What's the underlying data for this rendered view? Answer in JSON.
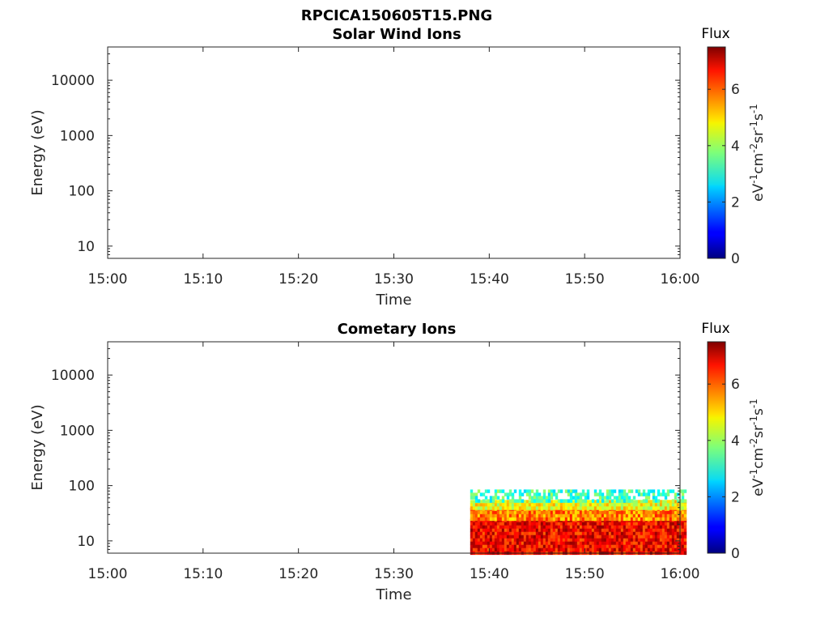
{
  "figure": {
    "title": "RPCICA150605T15.PNG"
  },
  "chart_data": [
    {
      "type": "heatmap",
      "title": "Solar Wind Ions",
      "xlabel": "Time",
      "ylabel": "Energy (eV)",
      "x_ticks": [
        "15:00",
        "15:10",
        "15:20",
        "15:30",
        "15:40",
        "15:50",
        "16:00"
      ],
      "xlim": [
        "15:00",
        "16:00"
      ],
      "y_scale": "log",
      "y_ticks": [
        10,
        100,
        1000,
        10000
      ],
      "y_tick_labels": [
        "10",
        "100",
        "1000",
        "10000"
      ],
      "ylim": [
        6,
        40000
      ],
      "colorbar": {
        "title": "Flux",
        "label": "eV-1cm-2sr-1s-1",
        "ticks": [
          0,
          2,
          4,
          6
        ],
        "tick_labels": [
          "0",
          "2",
          "4",
          "6"
        ],
        "range": [
          0,
          7.5
        ],
        "colormap": "jet"
      },
      "regions": []
    },
    {
      "type": "heatmap",
      "title": "Cometary Ions",
      "xlabel": "Time",
      "ylabel": "Energy (eV)",
      "x_ticks": [
        "15:00",
        "15:10",
        "15:20",
        "15:30",
        "15:40",
        "15:50",
        "16:00"
      ],
      "xlim": [
        "15:00",
        "16:00"
      ],
      "y_scale": "log",
      "y_ticks": [
        10,
        100,
        1000,
        10000
      ],
      "y_tick_labels": [
        "10",
        "100",
        "1000",
        "10000"
      ],
      "ylim": [
        6,
        40000
      ],
      "colorbar": {
        "title": "Flux",
        "label": "eV-1cm-2sr-1s-1",
        "ticks": [
          0,
          2,
          4,
          6
        ],
        "tick_labels": [
          "0",
          "2",
          "4",
          "6"
        ],
        "range": [
          0,
          7.5
        ],
        "colormap": "jet"
      },
      "regions": [
        {
          "t_start": "15:38",
          "t_end": "16:00",
          "e_low": 6,
          "e_high": 25,
          "flux": 6.6
        },
        {
          "t_start": "15:38",
          "t_end": "16:00",
          "e_low": 25,
          "e_high": 40,
          "flux": 5.6
        },
        {
          "t_start": "15:38",
          "t_end": "16:00",
          "e_low": 40,
          "e_high": 55,
          "flux": 4.6
        },
        {
          "t_start": "15:38",
          "t_end": "16:00",
          "e_low": 55,
          "e_high": 85,
          "flux": 3.3
        }
      ]
    }
  ]
}
